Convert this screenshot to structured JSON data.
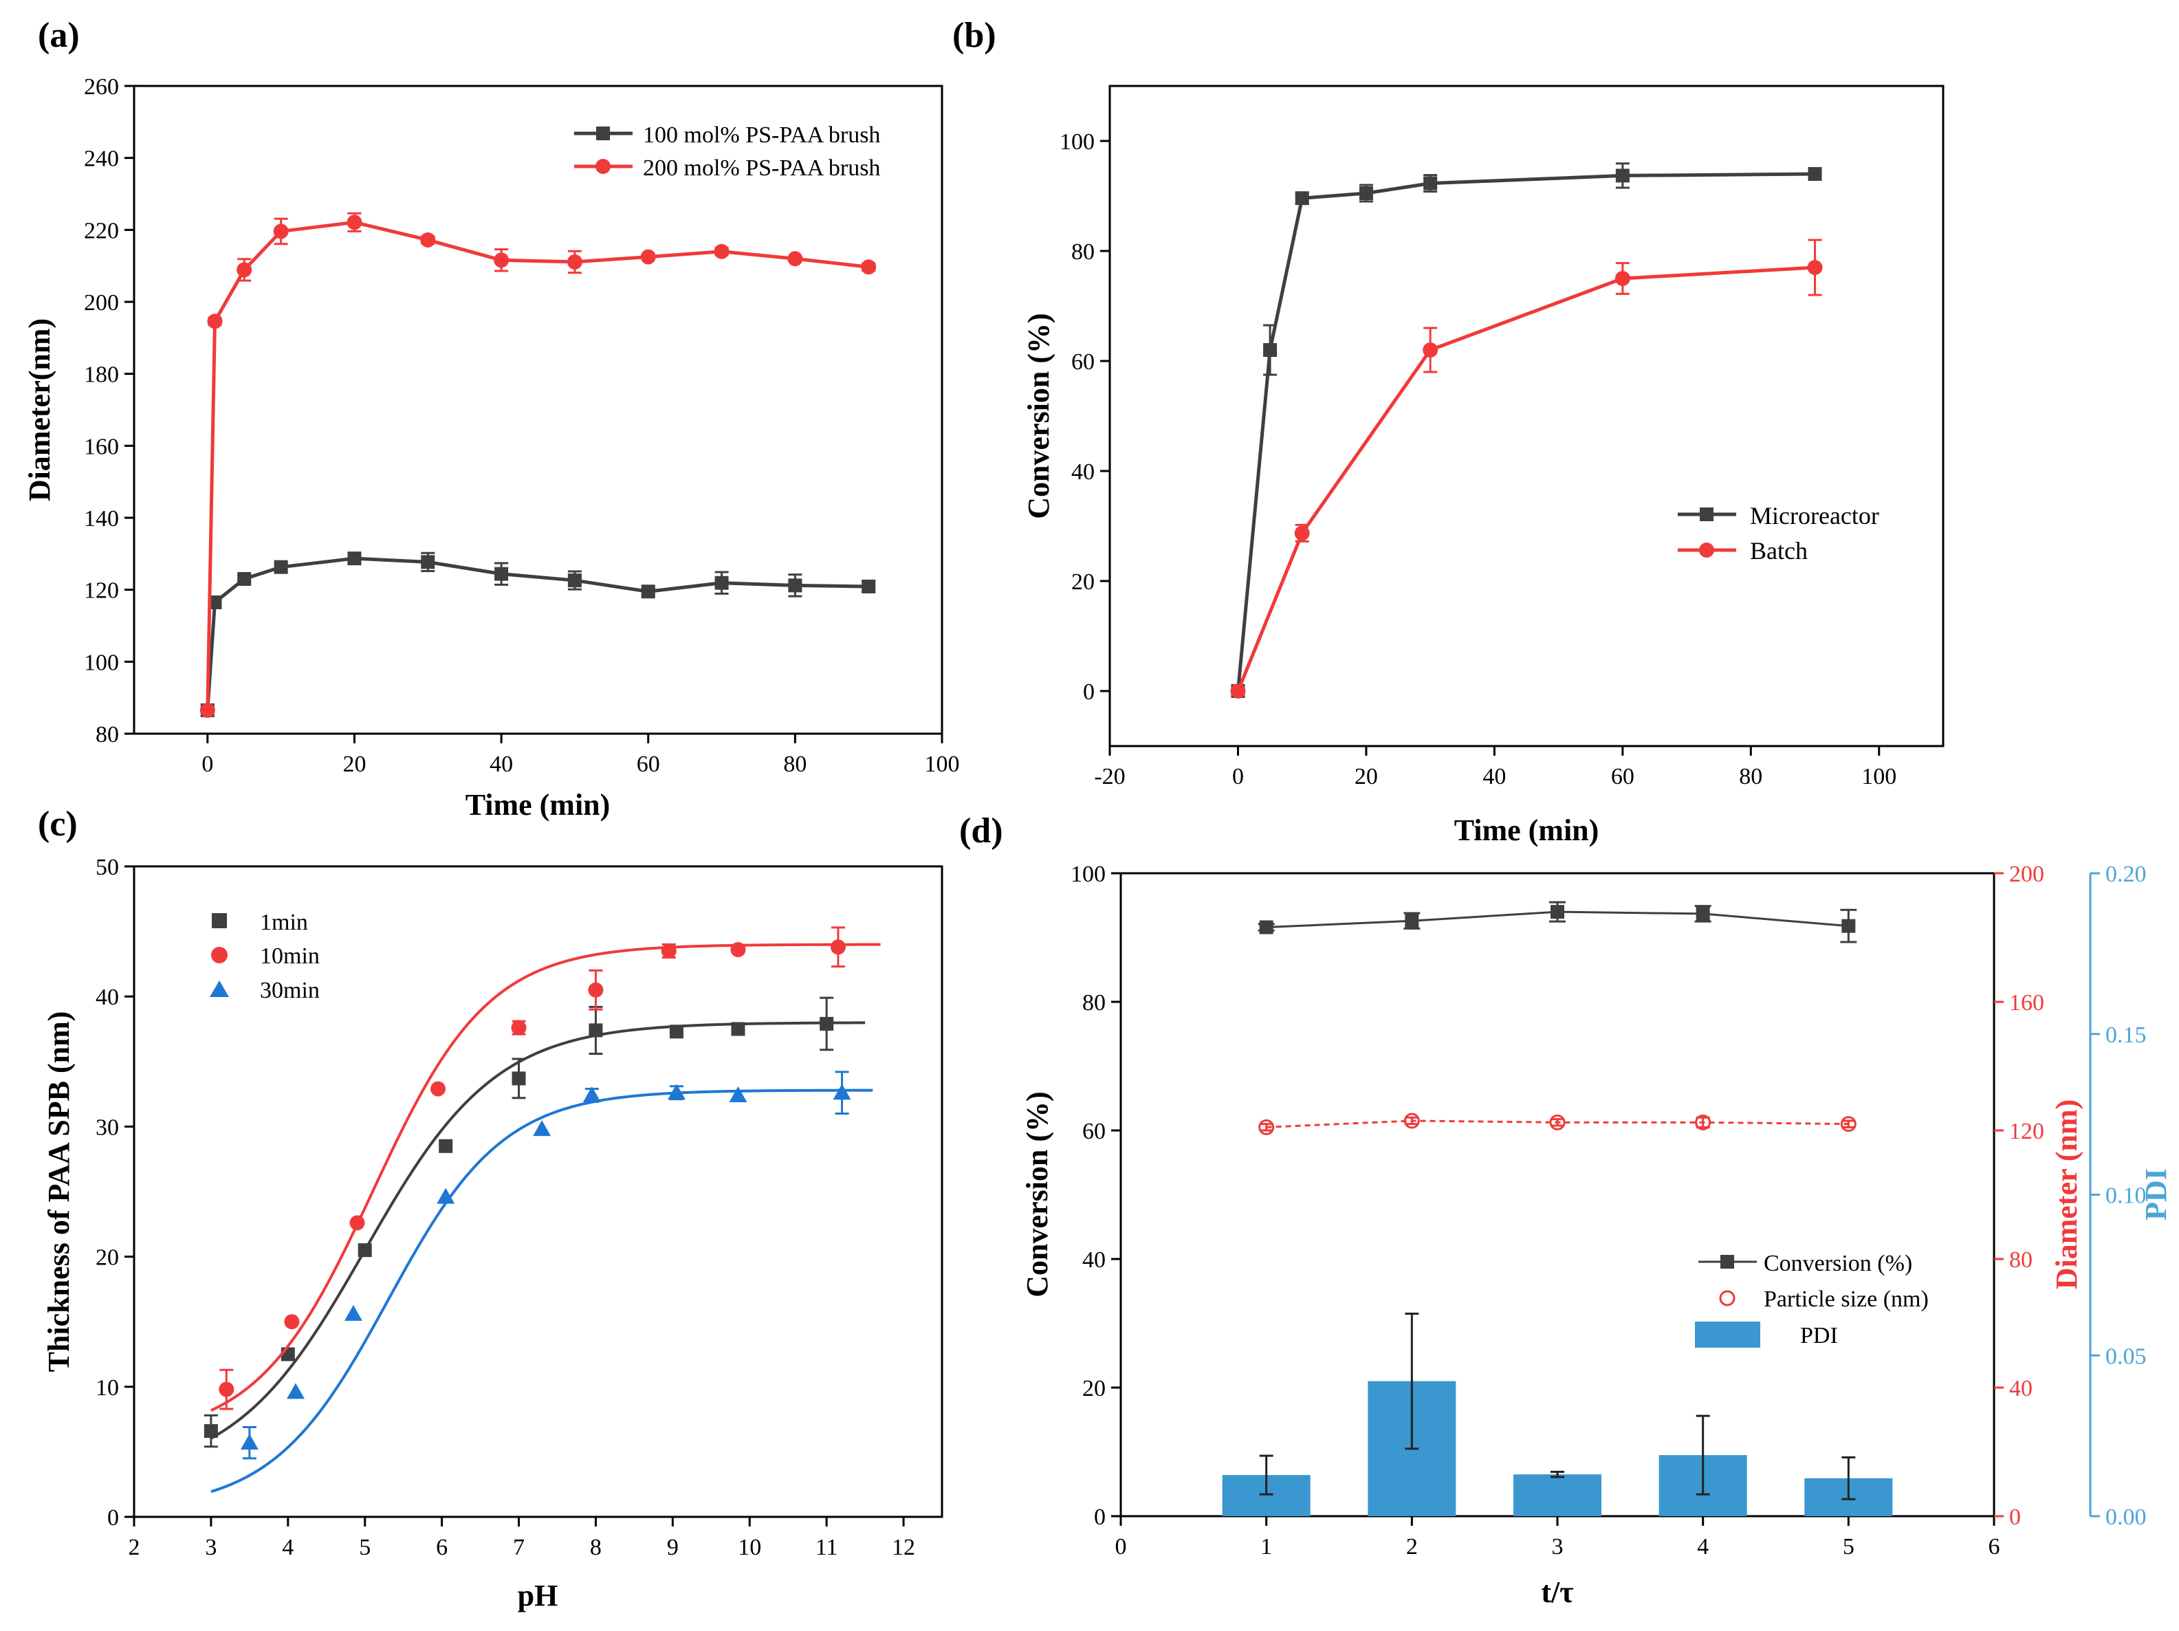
{
  "figure": {
    "panel_labels": [
      "(a)",
      "(b)",
      "(c)",
      "(d)"
    ]
  },
  "colors": {
    "black": "#3f3f3f",
    "red": "#f03a3a",
    "blue": "#1f77d4",
    "bar": "#3a97cf",
    "pdi_axis": "#4aa6d6"
  },
  "chart_data": [
    {
      "panel": "(a)",
      "type": "line",
      "xlabel": "Time (min)",
      "ylabel": "Diameter(nm)",
      "xlim": [
        -10,
        100
      ],
      "ylim": [
        80,
        260
      ],
      "xticks": [
        0,
        20,
        40,
        60,
        80,
        100
      ],
      "yticks": [
        80,
        100,
        120,
        140,
        160,
        180,
        200,
        220,
        240,
        260
      ],
      "legend_position": "top-right",
      "series": [
        {
          "name": "100 mol% PS-PAA brush",
          "color": "#3f3f3f",
          "marker": "square",
          "x": [
            0,
            1,
            5,
            10,
            20,
            30,
            40,
            50,
            60,
            70,
            80,
            90
          ],
          "y": [
            86.5,
            116.5,
            123,
            126.3,
            128.7,
            127.7,
            124.4,
            122.6,
            119.5,
            121.9,
            121.2,
            120.9
          ],
          "err": [
            0,
            1.0,
            1.0,
            1.0,
            1.0,
            2.5,
            3.0,
            2.5,
            1.0,
            3.0,
            3.0,
            1.5
          ]
        },
        {
          "name": "200 mol% PS-PAA brush",
          "color": "#f03a3a",
          "marker": "circle",
          "x": [
            0,
            1,
            5,
            10,
            20,
            30,
            40,
            50,
            60,
            70,
            80,
            90
          ],
          "y": [
            86.5,
            194.6,
            208.9,
            219.6,
            222.1,
            217.2,
            211.6,
            211.1,
            212.5,
            214.0,
            212.0,
            209.7
          ],
          "err": [
            0,
            1.0,
            3.0,
            3.5,
            2.5,
            1.0,
            3.0,
            3.0,
            0,
            1.0,
            0,
            1.0
          ]
        }
      ]
    },
    {
      "panel": "(b)",
      "type": "line",
      "xlabel": "Time (min)",
      "ylabel": "Conversion (%)",
      "xlim": [
        -20,
        110
      ],
      "ylim": [
        -10,
        110
      ],
      "xticks": [
        -20,
        0,
        20,
        40,
        60,
        80,
        100
      ],
      "yticks": [
        0,
        20,
        40,
        60,
        80,
        100
      ],
      "legend_position": "bottom-right",
      "series": [
        {
          "name": "Microreactor",
          "color": "#3f3f3f",
          "marker": "square",
          "x": [
            0,
            5,
            10,
            20,
            30,
            60,
            90
          ],
          "y": [
            0,
            62.0,
            89.6,
            90.5,
            92.3,
            93.7,
            94.0
          ],
          "err": [
            0,
            4.5,
            1.0,
            1.5,
            1.5,
            2.2,
            1.0
          ]
        },
        {
          "name": "Batch",
          "color": "#f03a3a",
          "marker": "circle",
          "x": [
            0,
            10,
            30,
            60,
            90
          ],
          "y": [
            0,
            28.7,
            62.0,
            75.0,
            77.0
          ],
          "err": [
            0,
            1.5,
            4.0,
            2.8,
            5.0
          ]
        }
      ]
    },
    {
      "panel": "(c)",
      "type": "scatter",
      "xlabel": "pH",
      "ylabel": "Thickness of PAA SPB (nm)",
      "xlim": [
        2,
        12.5
      ],
      "ylim": [
        0,
        50
      ],
      "xticks": [
        2,
        3,
        4,
        5,
        6,
        7,
        8,
        9,
        10,
        11,
        12
      ],
      "yticks": [
        0,
        10,
        20,
        30,
        40,
        50
      ],
      "legend_position": "top-left",
      "series": [
        {
          "name": "1min",
          "color": "#3f3f3f",
          "marker": "square",
          "x": [
            3.0,
            4.0,
            5.0,
            6.05,
            7.0,
            8.0,
            9.05,
            9.85,
            11.0
          ],
          "y": [
            6.6,
            12.5,
            20.5,
            28.5,
            33.7,
            37.4,
            37.3,
            37.5,
            37.9
          ],
          "err": [
            1.2,
            0,
            0,
            0,
            1.5,
            1.8,
            0,
            0,
            2.0
          ],
          "fit": {
            "x0": 3.0,
            "x1": 11.5,
            "A": 3.0,
            "B": 38.0,
            "m": 5.0,
            "s": 0.85
          }
        },
        {
          "name": "10min",
          "color": "#f03a3a",
          "marker": "circle",
          "x": [
            3.2,
            4.05,
            4.9,
            5.95,
            7.0,
            8.0,
            8.95,
            9.85,
            11.15
          ],
          "y": [
            9.8,
            15.0,
            22.6,
            32.9,
            37.6,
            40.5,
            43.5,
            43.6,
            43.8
          ],
          "err": [
            1.5,
            0,
            0,
            0,
            0.5,
            1.5,
            0.5,
            0,
            1.5
          ],
          "fit": {
            "x0": 3.0,
            "x1": 11.7,
            "A": 6.0,
            "B": 44.0,
            "m": 5.1,
            "s": 0.75
          }
        },
        {
          "name": "30min",
          "color": "#1f77d4",
          "marker": "triangle",
          "x": [
            3.5,
            4.1,
            4.85,
            6.05,
            7.3,
            7.95,
            9.05,
            9.85,
            11.2
          ],
          "y": [
            5.7,
            9.6,
            15.6,
            24.6,
            29.8,
            32.4,
            32.6,
            32.4,
            32.6
          ],
          "err": [
            1.2,
            0,
            0,
            0,
            0,
            0.5,
            0.5,
            0,
            1.6
          ],
          "fit": {
            "x0": 3.0,
            "x1": 11.6,
            "A": 0.5,
            "B": 32.8,
            "m": 5.3,
            "s": 0.75
          }
        }
      ]
    },
    {
      "panel": "(d)",
      "type": "bar",
      "xlabel": "t/τ",
      "ylabel": "Conversion (%)",
      "y2label": "Diameter (nm)",
      "y3label": "PDI",
      "xlim": [
        0,
        6
      ],
      "ylim": [
        0,
        100
      ],
      "y2lim": [
        0,
        200
      ],
      "y3lim": [
        0,
        0.2
      ],
      "xticks": [
        0,
        1,
        2,
        3,
        4,
        5,
        6
      ],
      "yticks": [
        0,
        20,
        40,
        60,
        80,
        100
      ],
      "y2ticks": [
        0,
        40,
        80,
        120,
        160,
        200
      ],
      "y3ticks": [
        "0.00",
        "0.05",
        "0.10",
        "0.15",
        "0.20"
      ],
      "legend_position": "bottom-right",
      "x": [
        1,
        2,
        3,
        4,
        5
      ],
      "series": [
        {
          "name": "Conversion (%)",
          "axis": "left",
          "color": "#3f3f3f",
          "marker": "square",
          "values": [
            91.6,
            92.6,
            94.0,
            93.7,
            91.8
          ],
          "err": [
            0.5,
            1.2,
            1.5,
            1.2,
            2.5
          ]
        },
        {
          "name": "Particle size (nm)",
          "axis": "right",
          "color": "#f03a3a",
          "marker": "open-circle",
          "values": [
            121.0,
            123.0,
            122.5,
            122.5,
            122.0
          ],
          "err": [
            1.0,
            1.0,
            1.0,
            1.5,
            1.0
          ]
        },
        {
          "name": "PDI",
          "axis": "pdi",
          "color": "#3a97cf",
          "marker": "bar",
          "values": [
            0.0128,
            0.042,
            0.013,
            0.019,
            0.0118
          ],
          "err": [
            0.006,
            0.021,
            0.0008,
            0.0122,
            0.0065
          ]
        }
      ]
    }
  ]
}
